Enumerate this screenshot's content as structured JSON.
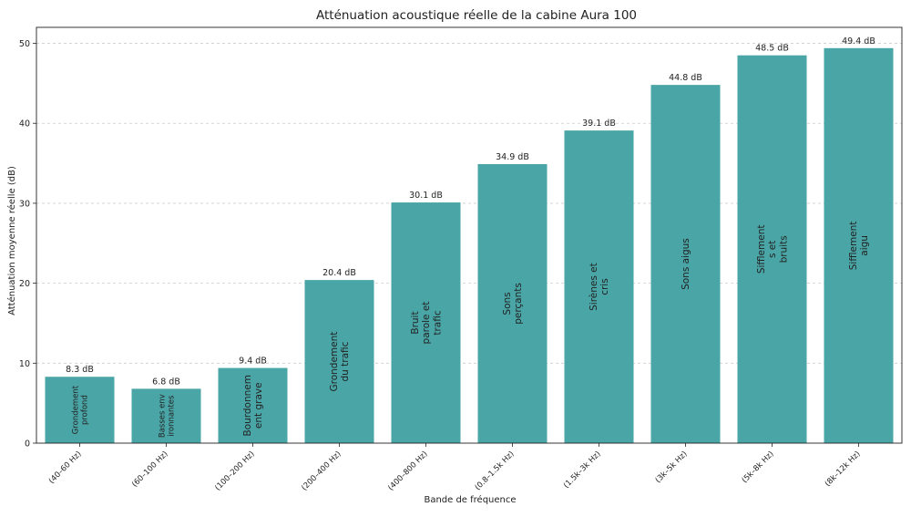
{
  "chart_data": {
    "type": "bar",
    "title": "Atténuation acoustique réelle de la cabine Aura 100",
    "xlabel": "Bande de fréquence",
    "ylabel": "Atténuation moyenne réelle (dB)",
    "ylim": [
      0,
      52
    ],
    "yticks": [
      0,
      10,
      20,
      30,
      40,
      50
    ],
    "grid": "horizontal dashed",
    "bar_color": "#4aa5a6",
    "value_suffix": " dB",
    "categories": [
      "(40–60 Hz)",
      "(60–100 Hz)",
      "(100–200 Hz)",
      "(200–400 Hz)",
      "(400–800 Hz)",
      "(0.8–1.5k Hz)",
      "(1.5k–3k Hz)",
      "(3k–5k Hz)",
      "(5k–8k Hz)",
      "(8k–12k Hz)"
    ],
    "bar_labels": [
      [
        "Grondement",
        "profond"
      ],
      [
        "Basses env",
        "ironnantes"
      ],
      [
        "Bourdonnem",
        "ent grave"
      ],
      [
        "Grondement",
        "du trafic"
      ],
      [
        "Bruit",
        "parole et",
        "trafic"
      ],
      [
        "Sons",
        "perçants"
      ],
      [
        "Sirènes et",
        "cris"
      ],
      [
        "Sons aigus"
      ],
      [
        "Sifflement",
        "s et",
        "bruits"
      ],
      [
        "Sifflement",
        "aigu"
      ]
    ],
    "values": [
      8.3,
      6.8,
      9.4,
      20.4,
      30.1,
      34.9,
      39.1,
      44.8,
      48.5,
      49.4
    ]
  }
}
